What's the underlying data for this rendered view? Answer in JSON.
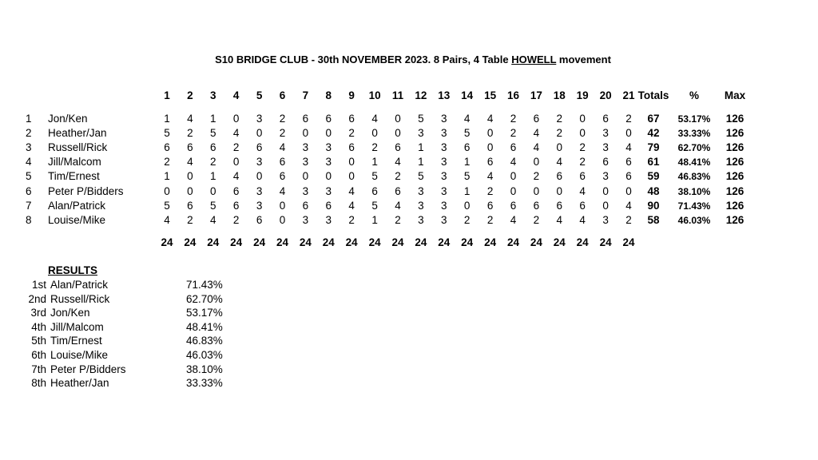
{
  "title": {
    "prefix": "S10 BRIDGE CLUB - 30th  NOVEMBER 2023. 8 Pairs, 4 Table ",
    "underlined": "HOWELL",
    "suffix": " movement"
  },
  "table": {
    "board_headers": [
      "1",
      "2",
      "3",
      "4",
      "5",
      "6",
      "7",
      "8",
      "9",
      "10",
      "11",
      "12",
      "13",
      "14",
      "15",
      "16",
      "17",
      "18",
      "19",
      "20",
      "21"
    ],
    "totals_header": "Totals",
    "pct_header": "%",
    "max_header": "Max",
    "rows": [
      {
        "num": "1",
        "pair": "Jon/Ken",
        "scores": [
          "1",
          "4",
          "1",
          "0",
          "3",
          "2",
          "6",
          "6",
          "6",
          "4",
          "0",
          "5",
          "3",
          "4",
          "4",
          "2",
          "6",
          "2",
          "0",
          "6",
          "2"
        ],
        "total": "67",
        "pct": "53.17%",
        "max": "126"
      },
      {
        "num": "2",
        "pair": "Heather/Jan",
        "scores": [
          "5",
          "2",
          "5",
          "4",
          "0",
          "2",
          "0",
          "0",
          "2",
          "0",
          "0",
          "3",
          "3",
          "5",
          "0",
          "2",
          "4",
          "2",
          "0",
          "3",
          "0"
        ],
        "total": "42",
        "pct": "33.33%",
        "max": "126"
      },
      {
        "num": "3",
        "pair": "Russell/Rick",
        "scores": [
          "6",
          "6",
          "6",
          "2",
          "6",
          "4",
          "3",
          "3",
          "6",
          "2",
          "6",
          "1",
          "3",
          "6",
          "0",
          "6",
          "4",
          "0",
          "2",
          "3",
          "4"
        ],
        "total": "79",
        "pct": "62.70%",
        "max": "126"
      },
      {
        "num": "4",
        "pair": "Jill/Malcom",
        "scores": [
          "2",
          "4",
          "2",
          "0",
          "3",
          "6",
          "3",
          "3",
          "0",
          "1",
          "4",
          "1",
          "3",
          "1",
          "6",
          "4",
          "0",
          "4",
          "2",
          "6",
          "6"
        ],
        "total": "61",
        "pct": "48.41%",
        "max": "126"
      },
      {
        "num": "5",
        "pair": "Tim/Ernest",
        "scores": [
          "1",
          "0",
          "1",
          "4",
          "0",
          "6",
          "0",
          "0",
          "0",
          "5",
          "2",
          "5",
          "3",
          "5",
          "4",
          "0",
          "2",
          "6",
          "6",
          "3",
          "6"
        ],
        "total": "59",
        "pct": "46.83%",
        "max": "126"
      },
      {
        "num": "6",
        "pair": "Peter P/Bidders",
        "scores": [
          "0",
          "0",
          "0",
          "6",
          "3",
          "4",
          "3",
          "3",
          "4",
          "6",
          "6",
          "3",
          "3",
          "1",
          "2",
          "0",
          "0",
          "0",
          "4",
          "0",
          "0"
        ],
        "total": "48",
        "pct": "38.10%",
        "max": "126"
      },
      {
        "num": "7",
        "pair": "Alan/Patrick",
        "scores": [
          "5",
          "6",
          "5",
          "6",
          "3",
          "0",
          "6",
          "6",
          "4",
          "5",
          "4",
          "3",
          "3",
          "0",
          "6",
          "6",
          "6",
          "6",
          "6",
          "0",
          "4"
        ],
        "total": "90",
        "pct": "71.43%",
        "max": "126"
      },
      {
        "num": "8",
        "pair": "Louise/Mike",
        "scores": [
          "4",
          "2",
          "4",
          "2",
          "6",
          "0",
          "3",
          "3",
          "2",
          "1",
          "2",
          "3",
          "3",
          "2",
          "2",
          "4",
          "2",
          "4",
          "4",
          "3",
          "2"
        ],
        "total": "58",
        "pct": "46.03%",
        "max": "126"
      }
    ],
    "board_totals": [
      "24",
      "24",
      "24",
      "24",
      "24",
      "24",
      "24",
      "24",
      "24",
      "24",
      "24",
      "24",
      "24",
      "24",
      "24",
      "24",
      "24",
      "24",
      "24",
      "24",
      "24"
    ]
  },
  "results": {
    "heading": "RESULTS",
    "items": [
      {
        "place": "1st",
        "pair": "Alan/Patrick",
        "pct": "71.43%"
      },
      {
        "place": "2nd",
        "pair": "Russell/Rick",
        "pct": "62.70%"
      },
      {
        "place": "3rd",
        "pair": "Jon/Ken",
        "pct": "53.17%"
      },
      {
        "place": "4th",
        "pair": "Jill/Malcom",
        "pct": "48.41%"
      },
      {
        "place": "5th",
        "pair": "Tim/Ernest",
        "pct": "46.83%"
      },
      {
        "place": "6th",
        "pair": "Louise/Mike",
        "pct": "46.03%"
      },
      {
        "place": "7th",
        "pair": "Peter P/Bidders",
        "pct": "38.10%"
      },
      {
        "place": "8th",
        "pair": "Heather/Jan",
        "pct": "33.33%"
      }
    ]
  }
}
